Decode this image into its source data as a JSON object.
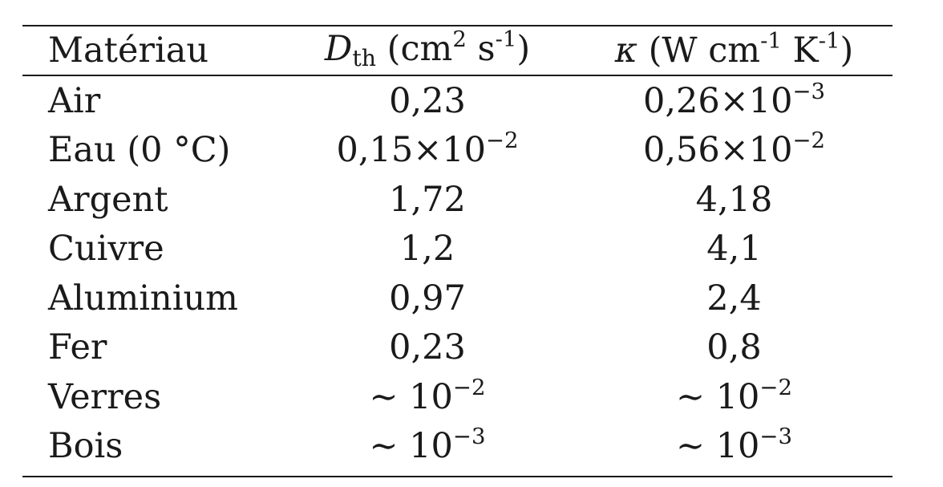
{
  "table": {
    "headers": {
      "material": "Matériau",
      "dth_symbol": "D",
      "dth_sub": "th",
      "dth_unit_open": "(cm",
      "dth_unit_exp1": "2",
      "dth_unit_mid": " s",
      "dth_unit_exp2": "-1",
      "dth_unit_close": ")",
      "kappa_symbol": "κ",
      "kappa_unit_open": "(W cm",
      "kappa_unit_exp1": "-1",
      "kappa_unit_mid": " K",
      "kappa_unit_exp2": "-1",
      "kappa_unit_close": ")"
    },
    "rows": [
      {
        "material": "Air",
        "dth": "0,23",
        "dth_exp": "",
        "kappa": "0,26×10",
        "kappa_exp": "−3"
      },
      {
        "material": "Eau (0 °C)",
        "dth": "0,15×10",
        "dth_exp": "−2",
        "kappa": "0,56×10",
        "kappa_exp": "−2"
      },
      {
        "material": "Argent",
        "dth": "1,72",
        "dth_exp": "",
        "kappa": "4,18",
        "kappa_exp": ""
      },
      {
        "material": "Cuivre",
        "dth": "1,2",
        "dth_exp": "",
        "kappa": "4,1",
        "kappa_exp": ""
      },
      {
        "material": "Aluminium",
        "dth": "0,97",
        "dth_exp": "",
        "kappa": "2,4",
        "kappa_exp": ""
      },
      {
        "material": "Fer",
        "dth": "0,23",
        "dth_exp": "",
        "kappa": "0,8",
        "kappa_exp": ""
      },
      {
        "material": "Verres",
        "dth": "∼ 10",
        "dth_exp": "−2",
        "kappa": "∼ 10",
        "kappa_exp": "−2"
      },
      {
        "material": "Bois",
        "dth": "∼ 10",
        "dth_exp": "−3",
        "kappa": "∼ 10",
        "kappa_exp": "−3"
      }
    ]
  }
}
